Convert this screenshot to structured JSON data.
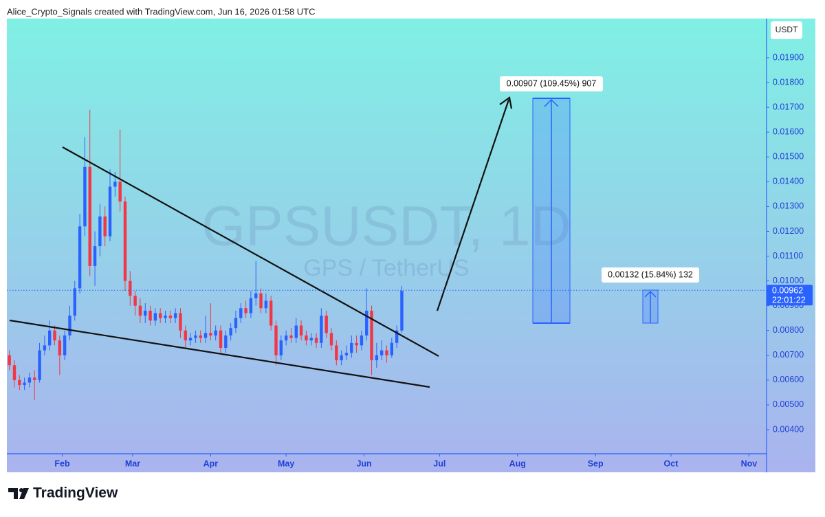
{
  "header": "Alice_Crypto_Signals created with TradingView.com, Jun 16, 2026 01:58 UTC",
  "brand": "TradingView",
  "chart_data": {
    "type": "candlestick",
    "title": "GPSUSDT, 1D",
    "subtitle": "GPS / TetherUS",
    "currency": "USDT",
    "up_color": "#2962ff",
    "down_color": "#f23645",
    "x": [
      11,
      13,
      15,
      17,
      19,
      21,
      23,
      25,
      27,
      29,
      31,
      33,
      35,
      37,
      39,
      41,
      43,
      45,
      47,
      49,
      51,
      53,
      55,
      57,
      59,
      61,
      63,
      65,
      67,
      69,
      71,
      73,
      75,
      77,
      79,
      81,
      83,
      85,
      87,
      89,
      91,
      93,
      95,
      97,
      99,
      101,
      103,
      105,
      107,
      109,
      111,
      113,
      115,
      117,
      119,
      121,
      123,
      125,
      127,
      129,
      131,
      133,
      135,
      137,
      139,
      141,
      143,
      145,
      147,
      149,
      151,
      153,
      155,
      157,
      159,
      161,
      163,
      165,
      167
    ],
    "open": [
      0.007,
      0.0066,
      0.006,
      0.0058,
      0.0059,
      0.0061,
      0.006,
      0.0072,
      0.0074,
      0.008,
      0.0076,
      0.007,
      0.0078,
      0.0086,
      0.0097,
      0.0122,
      0.0146,
      0.0106,
      0.0114,
      0.0126,
      0.0118,
      0.0138,
      0.014,
      0.0132,
      0.01,
      0.0094,
      0.009,
      0.0086,
      0.0088,
      0.0084,
      0.0087,
      0.0085,
      0.0086,
      0.0085,
      0.0087,
      0.008,
      0.0076,
      0.0077,
      0.0078,
      0.0077,
      0.0079,
      0.0078,
      0.008,
      0.0073,
      0.0078,
      0.0081,
      0.0085,
      0.0089,
      0.0087,
      0.0093,
      0.0095,
      0.0089,
      0.0092,
      0.0082,
      0.007,
      0.0076,
      0.0078,
      0.0077,
      0.0082,
      0.0078,
      0.0076,
      0.0077,
      0.0075,
      0.0086,
      0.0079,
      0.0074,
      0.0068,
      0.007,
      0.0071,
      0.0075,
      0.0074,
      0.0078,
      0.0088,
      0.0068,
      0.007,
      0.0072,
      0.007,
      0.0075,
      0.008
    ],
    "high": [
      0.0072,
      0.0068,
      0.0062,
      0.0061,
      0.0063,
      0.0064,
      0.0075,
      0.0078,
      0.0084,
      0.0082,
      0.0078,
      0.008,
      0.009,
      0.01,
      0.0127,
      0.0158,
      0.0169,
      0.012,
      0.0131,
      0.013,
      0.0145,
      0.0144,
      0.0161,
      0.0134,
      0.0104,
      0.0096,
      0.0093,
      0.0091,
      0.009,
      0.0089,
      0.0089,
      0.0088,
      0.0088,
      0.0089,
      0.0089,
      0.0082,
      0.0079,
      0.008,
      0.008,
      0.0086,
      0.0091,
      0.0082,
      0.0082,
      0.008,
      0.0083,
      0.0088,
      0.0091,
      0.0092,
      0.0096,
      0.0108,
      0.0097,
      0.0095,
      0.0094,
      0.0084,
      0.0078,
      0.008,
      0.0081,
      0.0085,
      0.0084,
      0.008,
      0.0079,
      0.0079,
      0.0089,
      0.0088,
      0.0081,
      0.0076,
      0.0072,
      0.0074,
      0.0078,
      0.0078,
      0.008,
      0.0097,
      0.009,
      0.0075,
      0.0076,
      0.0074,
      0.0077,
      0.0082,
      0.0098
    ],
    "low": [
      0.0064,
      0.0057,
      0.0056,
      0.0056,
      0.0057,
      0.0052,
      0.0059,
      0.007,
      0.0072,
      0.0074,
      0.0062,
      0.0068,
      0.0076,
      0.0084,
      0.0095,
      0.0118,
      0.0102,
      0.0098,
      0.011,
      0.0114,
      0.0116,
      0.0134,
      0.0128,
      0.0096,
      0.009,
      0.0086,
      0.0083,
      0.0083,
      0.0082,
      0.0082,
      0.0083,
      0.0083,
      0.0083,
      0.0083,
      0.0077,
      0.0073,
      0.0074,
      0.0075,
      0.0075,
      0.0075,
      0.0076,
      0.0076,
      0.0071,
      0.0071,
      0.0076,
      0.0079,
      0.0083,
      0.0085,
      0.0085,
      0.009,
      0.0087,
      0.0087,
      0.008,
      0.0066,
      0.0068,
      0.0074,
      0.0075,
      0.0075,
      0.0076,
      0.0074,
      0.0074,
      0.0073,
      0.0073,
      0.0077,
      0.0072,
      0.0066,
      0.0066,
      0.0068,
      0.0069,
      0.0071,
      0.0072,
      0.0076,
      0.0062,
      0.0065,
      0.0068,
      0.0067,
      0.0069,
      0.0073,
      0.0079
    ],
    "close": [
      0.0066,
      0.006,
      0.0058,
      0.0059,
      0.0061,
      0.006,
      0.0072,
      0.0074,
      0.008,
      0.0076,
      0.007,
      0.0078,
      0.0086,
      0.0097,
      0.0122,
      0.0146,
      0.0106,
      0.0114,
      0.0126,
      0.0118,
      0.0138,
      0.014,
      0.0132,
      0.01,
      0.0094,
      0.009,
      0.0086,
      0.0088,
      0.0084,
      0.0087,
      0.0085,
      0.0086,
      0.0085,
      0.0087,
      0.008,
      0.0076,
      0.0077,
      0.0078,
      0.0077,
      0.0079,
      0.0078,
      0.008,
      0.0073,
      0.0078,
      0.0081,
      0.0085,
      0.0089,
      0.0087,
      0.0093,
      0.0095,
      0.0089,
      0.0092,
      0.0082,
      0.007,
      0.0076,
      0.0078,
      0.0077,
      0.0082,
      0.0078,
      0.0076,
      0.0077,
      0.0075,
      0.0086,
      0.0079,
      0.0074,
      0.0068,
      0.007,
      0.0071,
      0.0075,
      0.0074,
      0.0078,
      0.0088,
      0.0068,
      0.007,
      0.0072,
      0.007,
      0.0075,
      0.008,
      0.0096
    ],
    "xlim": [
      10,
      312
    ],
    "ylim": [
      0.00303,
      0.02058
    ],
    "xticks": [
      {
        "value": 32,
        "label": "Feb"
      },
      {
        "value": 60,
        "label": "Mar"
      },
      {
        "value": 91,
        "label": "Apr"
      },
      {
        "value": 121,
        "label": "May"
      },
      {
        "value": 152,
        "label": "Jun"
      },
      {
        "value": 182,
        "label": "Jul"
      },
      {
        "value": 213,
        "label": "Aug"
      },
      {
        "value": 244,
        "label": "Sep"
      },
      {
        "value": 274,
        "label": "Oct"
      },
      {
        "value": 305,
        "label": "Nov"
      }
    ],
    "yticks": [
      {
        "value": 0.004,
        "label": "0.00400"
      },
      {
        "value": 0.005,
        "label": "0.00500"
      },
      {
        "value": 0.006,
        "label": "0.00600"
      },
      {
        "value": 0.007,
        "label": "0.00700"
      },
      {
        "value": 0.008,
        "label": "0.00800"
      },
      {
        "value": 0.009,
        "label": "0.00900"
      },
      {
        "value": 0.01,
        "label": "0.01000"
      },
      {
        "value": 0.011,
        "label": "0.01100"
      },
      {
        "value": 0.012,
        "label": "0.01200"
      },
      {
        "value": 0.013,
        "label": "0.01300"
      },
      {
        "value": 0.014,
        "label": "0.01400"
      },
      {
        "value": 0.015,
        "label": "0.01500"
      },
      {
        "value": 0.016,
        "label": "0.01600"
      },
      {
        "value": 0.017,
        "label": "0.01700"
      },
      {
        "value": 0.018,
        "label": "0.01800"
      },
      {
        "value": 0.019,
        "label": "0.01900"
      }
    ],
    "last_price": 0.00962,
    "countdown": "22:01:22",
    "annotations": [
      "0.00907 (109.45%) 907",
      "0.00132 (15.84%) 132"
    ]
  }
}
